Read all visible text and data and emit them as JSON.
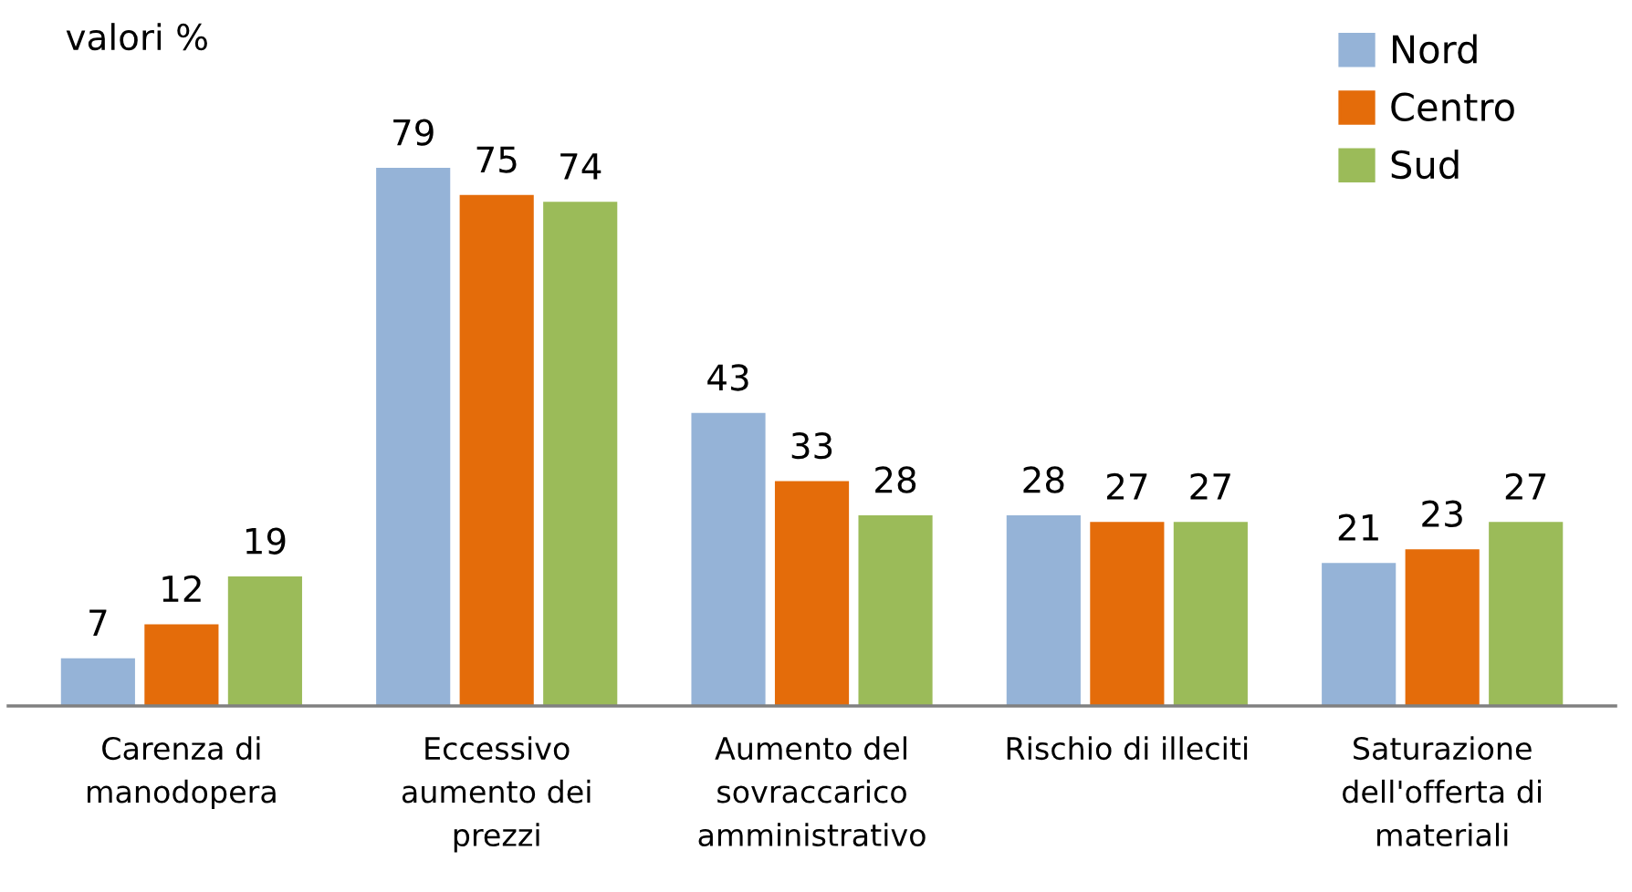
{
  "chart_data": {
    "type": "bar",
    "subtitle": "valori %",
    "categories": [
      "Carenza di\nmanodopera",
      "Eccessivo\naumento dei\nprezzi",
      "Aumento del\nsovraccarico\namministrativo",
      "Rischio di illeciti",
      "Saturazione\ndell'offerta di\nmateriali"
    ],
    "series": [
      {
        "name": "Nord",
        "color": "#95b3d7",
        "values": [
          7,
          79,
          43,
          28,
          21
        ]
      },
      {
        "name": "Centro",
        "color": "#e46c0a",
        "values": [
          12,
          75,
          33,
          27,
          23
        ]
      },
      {
        "name": "Sud",
        "color": "#9bbb59",
        "values": [
          19,
          74,
          28,
          27,
          27
        ]
      }
    ],
    "data_labels": true,
    "legend": "top right"
  }
}
